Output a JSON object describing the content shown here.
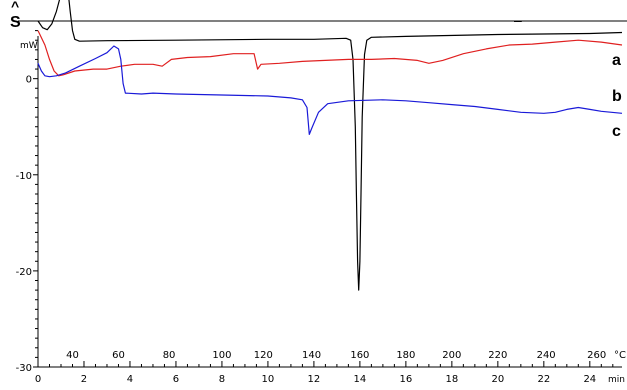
{
  "corner": {
    "text": "S",
    "caret": "^",
    "marker": "–"
  },
  "chart_data": {
    "type": "line",
    "title": "",
    "ylabel": "mW",
    "xlabel": "min",
    "x2label": "°C",
    "ylim": [
      -30,
      6
    ],
    "xlim": [
      0,
      25.4
    ],
    "grid": false,
    "yticks": [
      0,
      -10,
      -20,
      -30
    ],
    "xticks": [
      0,
      2,
      4,
      6,
      8,
      10,
      12,
      14,
      16,
      18,
      20,
      22,
      24
    ],
    "temp_axis": {
      "labels": [
        40,
        60,
        80,
        100,
        120,
        140,
        160,
        180,
        200,
        220,
        240,
        260
      ],
      "label_x_min": [
        1.5,
        3.5,
        5.7,
        8.0,
        9.8,
        11.9,
        14.0,
        16.0,
        18.0,
        20.0,
        22.1,
        24.3
      ]
    },
    "series": [
      {
        "name": "a",
        "color": "#000000",
        "points": [
          [
            0,
            6.0
          ],
          [
            0.2,
            5.3
          ],
          [
            0.4,
            5.1
          ],
          [
            0.6,
            5.7
          ],
          [
            0.8,
            7.0
          ],
          [
            1.0,
            8.8
          ],
          [
            1.2,
            10.0
          ],
          [
            1.3,
            9.2
          ],
          [
            1.4,
            7.0
          ],
          [
            1.5,
            5.0
          ],
          [
            1.6,
            4.1
          ],
          [
            1.8,
            3.9
          ],
          [
            3,
            3.95
          ],
          [
            6,
            4.0
          ],
          [
            10,
            4.1
          ],
          [
            12,
            4.1
          ],
          [
            13.4,
            4.2
          ],
          [
            13.6,
            4.0
          ],
          [
            13.7,
            2.0
          ],
          [
            13.8,
            -5.0
          ],
          [
            13.85,
            -12.0
          ],
          [
            13.9,
            -19.0
          ],
          [
            13.95,
            -22.0
          ],
          [
            14.0,
            -19.0
          ],
          [
            14.05,
            -12.0
          ],
          [
            14.1,
            -4.0
          ],
          [
            14.2,
            2.5
          ],
          [
            14.3,
            4.0
          ],
          [
            14.5,
            4.3
          ],
          [
            16,
            4.4
          ],
          [
            20,
            4.6
          ],
          [
            24,
            4.7
          ],
          [
            25.4,
            4.8
          ]
        ]
      },
      {
        "name": "b",
        "color": "#e02020",
        "points": [
          [
            0,
            5.0
          ],
          [
            0.1,
            4.5
          ],
          [
            0.3,
            3.5
          ],
          [
            0.5,
            2.0
          ],
          [
            0.7,
            0.8
          ],
          [
            0.9,
            0.3
          ],
          [
            1.1,
            0.4
          ],
          [
            1.6,
            0.8
          ],
          [
            2.4,
            1.0
          ],
          [
            3.0,
            1.0
          ],
          [
            3.6,
            1.3
          ],
          [
            4.2,
            1.5
          ],
          [
            5.0,
            1.5
          ],
          [
            5.4,
            1.3
          ],
          [
            5.8,
            2.0
          ],
          [
            6.5,
            2.2
          ],
          [
            7.5,
            2.3
          ],
          [
            8.5,
            2.6
          ],
          [
            9.4,
            2.6
          ],
          [
            9.55,
            1.0
          ],
          [
            9.7,
            1.5
          ],
          [
            10.5,
            1.6
          ],
          [
            11.5,
            1.8
          ],
          [
            12.5,
            1.9
          ],
          [
            13.5,
            2.0
          ],
          [
            14.5,
            2.0
          ],
          [
            15.5,
            2.1
          ],
          [
            16.5,
            1.9
          ],
          [
            17.0,
            1.6
          ],
          [
            17.6,
            1.9
          ],
          [
            18.5,
            2.6
          ],
          [
            19.5,
            3.1
          ],
          [
            20.5,
            3.5
          ],
          [
            21.5,
            3.6
          ],
          [
            22.5,
            3.8
          ],
          [
            23.5,
            4.0
          ],
          [
            24.5,
            3.8
          ],
          [
            25.4,
            3.5
          ]
        ]
      },
      {
        "name": "c",
        "color": "#1a1ad8",
        "points": [
          [
            0,
            1.6
          ],
          [
            0.15,
            0.8
          ],
          [
            0.3,
            0.3
          ],
          [
            0.5,
            0.2
          ],
          [
            0.8,
            0.3
          ],
          [
            1.2,
            0.6
          ],
          [
            1.8,
            1.3
          ],
          [
            2.5,
            2.1
          ],
          [
            3.0,
            2.7
          ],
          [
            3.3,
            3.4
          ],
          [
            3.5,
            3.1
          ],
          [
            3.6,
            2.0
          ],
          [
            3.7,
            -0.5
          ],
          [
            3.8,
            -1.5
          ],
          [
            4.5,
            -1.6
          ],
          [
            5.0,
            -1.5
          ],
          [
            6.0,
            -1.6
          ],
          [
            8.0,
            -1.7
          ],
          [
            10.0,
            -1.8
          ],
          [
            11.0,
            -2.0
          ],
          [
            11.5,
            -2.2
          ],
          [
            11.7,
            -3.0
          ],
          [
            11.8,
            -5.8
          ],
          [
            11.9,
            -5.2
          ],
          [
            12.2,
            -3.5
          ],
          [
            12.6,
            -2.6
          ],
          [
            13.5,
            -2.3
          ],
          [
            15.0,
            -2.2
          ],
          [
            16.0,
            -2.3
          ],
          [
            17.0,
            -2.5
          ],
          [
            18.0,
            -2.7
          ],
          [
            19.0,
            -2.9
          ],
          [
            20.0,
            -3.2
          ],
          [
            21.0,
            -3.5
          ],
          [
            22.0,
            -3.6
          ],
          [
            22.5,
            -3.5
          ],
          [
            23.0,
            -3.2
          ],
          [
            23.5,
            -3.0
          ],
          [
            24.0,
            -3.2
          ],
          [
            24.5,
            -3.4
          ],
          [
            25.4,
            -3.6
          ]
        ]
      }
    ]
  }
}
